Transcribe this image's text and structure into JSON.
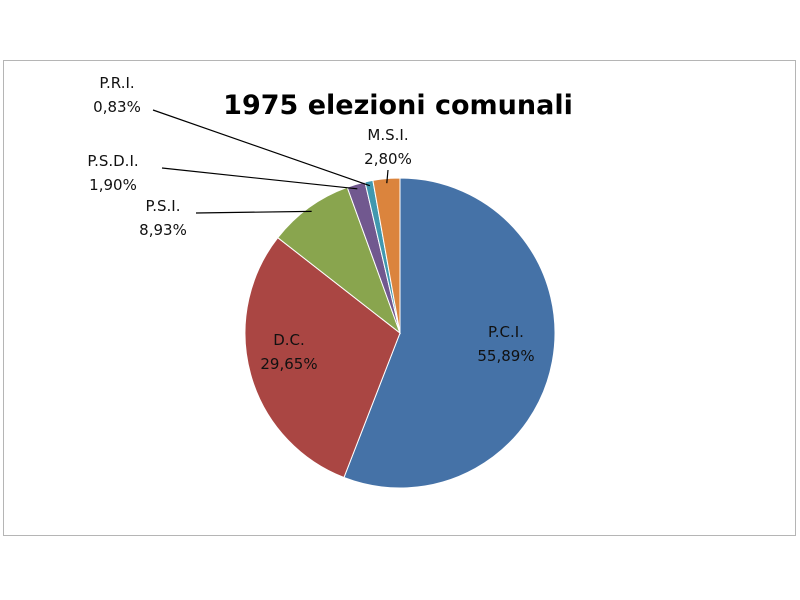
{
  "chart_data": {
    "type": "pie",
    "title": "1975 elezioni comunali",
    "slices": [
      {
        "label": "P.C.I.",
        "value": 55.89,
        "percent_text": "55,89%",
        "color": "#4572A7"
      },
      {
        "label": "D.C.",
        "value": 29.65,
        "percent_text": "29,65%",
        "color": "#AA4643"
      },
      {
        "label": "P.S.I.",
        "value": 8.93,
        "percent_text": "8,93%",
        "color": "#89A54E"
      },
      {
        "label": "P.S.D.I.",
        "value": 1.9,
        "percent_text": "1,90%",
        "color": "#71588F"
      },
      {
        "label": "P.R.I.",
        "value": 0.83,
        "percent_text": "0,83%",
        "color": "#4198AF"
      },
      {
        "label": "M.S.I.",
        "value": 2.8,
        "percent_text": "2,80%",
        "color": "#DB843D"
      }
    ],
    "start_angle_deg": 0,
    "direction": "clockwise",
    "legend": "none"
  }
}
